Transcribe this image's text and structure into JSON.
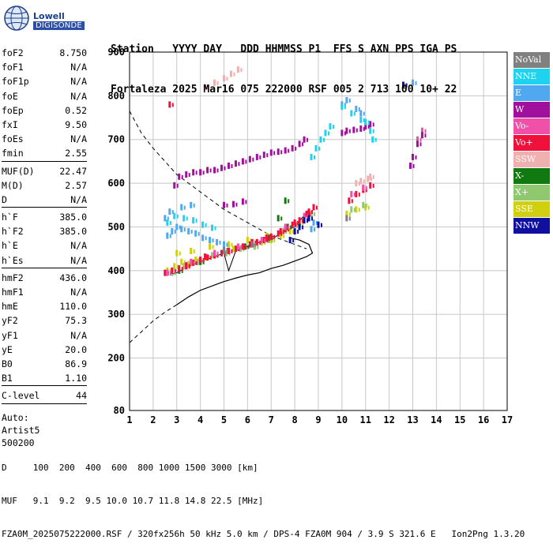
{
  "logo": {
    "brand": "Lowell",
    "product": "DIGISONDE"
  },
  "header": {
    "labels": [
      "Station",
      "YYYY",
      "DAY",
      "DDD",
      "HHMMSS",
      "P1",
      "FFS",
      "S",
      "AXN",
      "PPS",
      "IGA",
      "PS"
    ],
    "values": [
      "Fortaleza",
      "2025",
      "Mar16",
      "075",
      "222000",
      "RSF",
      "005",
      "2",
      "713",
      "100",
      "10+",
      "22"
    ]
  },
  "params": [
    {
      "name": "foF2",
      "value": "8.750"
    },
    {
      "name": "foF1",
      "value": "N/A"
    },
    {
      "name": "foF1p",
      "value": "N/A"
    },
    {
      "name": "foE",
      "value": "N/A"
    },
    {
      "name": "foEp",
      "value": "0.52"
    },
    {
      "name": "fxI",
      "value": "9.50"
    },
    {
      "name": "foEs",
      "value": "N/A"
    },
    {
      "name": "fmin",
      "value": "2.55",
      "sep": true
    },
    {
      "name": "MUF(D)",
      "value": "22.47"
    },
    {
      "name": "M(D)",
      "value": "2.57"
    },
    {
      "name": "D",
      "value": "N/A",
      "sep": true
    },
    {
      "name": "h`F",
      "value": "385.0"
    },
    {
      "name": "h`F2",
      "value": "385.0"
    },
    {
      "name": "h`E",
      "value": "N/A"
    },
    {
      "name": "h`Es",
      "value": "N/A",
      "sep": true
    },
    {
      "name": "hmF2",
      "value": "436.0"
    },
    {
      "name": "hmF1",
      "value": "N/A"
    },
    {
      "name": "hmE",
      "value": "110.0"
    },
    {
      "name": "yF2",
      "value": "75.3"
    },
    {
      "name": "yF1",
      "value": "N/A"
    },
    {
      "name": "yE",
      "value": "20.0"
    },
    {
      "name": "B0",
      "value": "86.9"
    },
    {
      "name": "B1",
      "value": "1.10",
      "sep": true
    },
    {
      "name": "C-level",
      "value": "44",
      "sep": true
    }
  ],
  "auto": [
    "Auto:",
    "Artist5",
    "500200"
  ],
  "legend": [
    {
      "label": "NoVal",
      "color": "#808080",
      "text": "#ffffff"
    },
    {
      "label": "NNE",
      "color": "#1ed2f0",
      "text": "#ffffff"
    },
    {
      "label": "E",
      "color": "#50a8f0",
      "text": "#ffffff"
    },
    {
      "label": "W",
      "color": "#a0109c",
      "text": "#ffffff"
    },
    {
      "label": "Vo-",
      "color": "#f050a8",
      "text": "#ffffff"
    },
    {
      "label": "Vo+",
      "color": "#f0103c",
      "text": "#ffffff"
    },
    {
      "label": "SSW",
      "color": "#f0b0b0",
      "text": "#ffffff"
    },
    {
      "label": "X-",
      "color": "#107a10",
      "text": "#ffffff"
    },
    {
      "label": "X+",
      "color": "#90c870",
      "text": "#ffffff"
    },
    {
      "label": "SSE",
      "color": "#d0d010",
      "text": "#ffffff"
    },
    {
      "label": "NNW",
      "color": "#1010a0",
      "text": "#ffffff"
    }
  ],
  "chart_data": {
    "type": "scatter",
    "xlim": [
      1,
      17
    ],
    "ylim": [
      80,
      900
    ],
    "xticks": [
      1,
      2,
      3,
      4,
      5,
      6,
      7,
      8,
      9,
      10,
      11,
      12,
      13,
      14,
      15,
      16,
      17
    ],
    "yticks": [
      80,
      200,
      300,
      400,
      500,
      600,
      700,
      800,
      900
    ],
    "grid": true,
    "legend_placement": "right",
    "series": [
      {
        "color": "#d0d010",
        "points": [
          [
            2.6,
            400
          ],
          [
            2.9,
            410
          ],
          [
            3.2,
            420
          ],
          [
            3.5,
            415
          ],
          [
            3.8,
            425
          ],
          [
            4.2,
            430
          ],
          [
            4.6,
            440
          ],
          [
            5.0,
            445
          ],
          [
            5.4,
            450
          ],
          [
            5.8,
            455
          ],
          [
            6.2,
            460
          ],
          [
            6.6,
            465
          ],
          [
            7.0,
            470
          ],
          [
            7.4,
            480
          ],
          [
            7.8,
            490
          ],
          [
            8.2,
            510
          ],
          [
            8.6,
            525
          ],
          [
            10.2,
            530
          ],
          [
            10.6,
            540
          ],
          [
            11.0,
            545
          ],
          [
            3.0,
            440
          ],
          [
            3.6,
            445
          ],
          [
            4.4,
            455
          ],
          [
            5.2,
            460
          ],
          [
            6.0,
            470
          ],
          [
            6.8,
            480
          ]
        ]
      },
      {
        "color": "#90c870",
        "points": [
          [
            2.8,
            395
          ],
          [
            3.3,
            410
          ],
          [
            3.9,
            420
          ],
          [
            4.5,
            435
          ],
          [
            5.1,
            440
          ],
          [
            5.7,
            450
          ],
          [
            6.3,
            455
          ],
          [
            6.9,
            470
          ],
          [
            7.5,
            490
          ],
          [
            8.1,
            505
          ],
          [
            8.7,
            530
          ],
          [
            10.4,
            540
          ],
          [
            10.9,
            550
          ]
        ]
      },
      {
        "color": "#107a10",
        "points": [
          [
            3.1,
            400
          ],
          [
            4.0,
            420
          ],
          [
            4.9,
            440
          ],
          [
            5.9,
            455
          ],
          [
            6.9,
            475
          ],
          [
            7.7,
            500
          ],
          [
            8.4,
            520
          ],
          [
            7.3,
            520
          ],
          [
            7.6,
            560
          ]
        ]
      },
      {
        "color": "#f0103c",
        "points": [
          [
            2.5,
            395
          ],
          [
            2.8,
            400
          ],
          [
            3.1,
            405
          ],
          [
            3.4,
            410
          ],
          [
            3.7,
            418
          ],
          [
            4.0,
            425
          ],
          [
            4.3,
            430
          ],
          [
            4.6,
            435
          ],
          [
            4.9,
            440
          ],
          [
            5.2,
            445
          ],
          [
            5.5,
            450
          ],
          [
            5.8,
            455
          ],
          [
            6.1,
            460
          ],
          [
            6.4,
            465
          ],
          [
            6.7,
            470
          ],
          [
            7.0,
            478
          ],
          [
            7.3,
            485
          ],
          [
            7.6,
            495
          ],
          [
            7.9,
            505
          ],
          [
            8.2,
            515
          ],
          [
            8.5,
            530
          ],
          [
            8.8,
            545
          ],
          [
            2.7,
            780
          ],
          [
            10.3,
            560
          ],
          [
            10.6,
            575
          ],
          [
            10.9,
            585
          ],
          [
            11.2,
            595
          ],
          [
            6.2,
            465
          ],
          [
            6.8,
            475
          ],
          [
            7.4,
            490
          ],
          [
            8.0,
            510
          ],
          [
            8.6,
            535
          ],
          [
            5.0,
            448
          ],
          [
            4.2,
            432
          ],
          [
            3.4,
            412
          ]
        ]
      },
      {
        "color": "#f050a8",
        "points": [
          [
            2.6,
            395
          ],
          [
            3.6,
            420
          ],
          [
            4.6,
            440
          ],
          [
            5.6,
            455
          ],
          [
            6.6,
            470
          ],
          [
            7.6,
            500
          ],
          [
            8.4,
            525
          ],
          [
            10.4,
            575
          ],
          [
            10.9,
            590
          ],
          [
            13.2,
            700
          ],
          [
            13.4,
            720
          ]
        ]
      },
      {
        "color": "#a0109c",
        "points": [
          [
            2.9,
            595
          ],
          [
            3.1,
            615
          ],
          [
            3.4,
            620
          ],
          [
            3.7,
            625
          ],
          [
            4.0,
            625
          ],
          [
            4.3,
            630
          ],
          [
            4.6,
            630
          ],
          [
            4.9,
            635
          ],
          [
            5.2,
            640
          ],
          [
            5.5,
            645
          ],
          [
            5.8,
            650
          ],
          [
            6.1,
            655
          ],
          [
            6.4,
            660
          ],
          [
            6.7,
            665
          ],
          [
            7.0,
            670
          ],
          [
            7.3,
            672
          ],
          [
            7.6,
            675
          ],
          [
            7.9,
            680
          ],
          [
            8.2,
            690
          ],
          [
            8.4,
            700
          ],
          [
            5.0,
            550
          ],
          [
            5.4,
            552
          ],
          [
            5.8,
            558
          ],
          [
            10.0,
            715
          ],
          [
            10.2,
            720
          ],
          [
            10.5,
            722
          ],
          [
            10.8,
            725
          ],
          [
            11.0,
            730
          ],
          [
            11.2,
            735
          ],
          [
            13.0,
            660
          ],
          [
            13.2,
            690
          ],
          [
            13.4,
            710
          ],
          [
            12.9,
            640
          ],
          [
            12.6,
            825
          ]
        ]
      },
      {
        "color": "#f0b0b0",
        "points": [
          [
            4.2,
            820
          ],
          [
            4.6,
            830
          ],
          [
            5.0,
            840
          ],
          [
            5.3,
            850
          ],
          [
            5.6,
            860
          ],
          [
            10.6,
            600
          ],
          [
            10.8,
            605
          ],
          [
            11.1,
            610
          ],
          [
            11.2,
            615
          ]
        ]
      },
      {
        "color": "#50a8f0",
        "points": [
          [
            2.6,
            480
          ],
          [
            2.8,
            490
          ],
          [
            3.0,
            500
          ],
          [
            3.2,
            495
          ],
          [
            3.5,
            490
          ],
          [
            3.8,
            485
          ],
          [
            4.1,
            475
          ],
          [
            4.4,
            470
          ],
          [
            4.7,
            465
          ],
          [
            5.0,
            460
          ],
          [
            2.5,
            520
          ],
          [
            2.7,
            535
          ],
          [
            3.2,
            545
          ],
          [
            3.6,
            550
          ],
          [
            10.0,
            780
          ],
          [
            10.2,
            790
          ],
          [
            10.6,
            770
          ],
          [
            10.8,
            760
          ],
          [
            13.0,
            830
          ],
          [
            8.7,
            495
          ],
          [
            8.8,
            510
          ]
        ]
      },
      {
        "color": "#1ed2f0",
        "points": [
          [
            2.9,
            525
          ],
          [
            3.3,
            520
          ],
          [
            3.7,
            515
          ],
          [
            4.1,
            505
          ],
          [
            4.5,
            498
          ],
          [
            8.7,
            660
          ],
          [
            8.9,
            680
          ],
          [
            9.1,
            700
          ],
          [
            9.3,
            715
          ],
          [
            9.5,
            730
          ],
          [
            10.0,
            775
          ],
          [
            10.4,
            760
          ],
          [
            10.8,
            745
          ],
          [
            11.0,
            740
          ],
          [
            11.2,
            720
          ],
          [
            11.3,
            700
          ],
          [
            2.6,
            510
          ]
        ]
      },
      {
        "color": "#1010a0",
        "points": [
          [
            7.8,
            470
          ],
          [
            8.0,
            490
          ],
          [
            8.2,
            500
          ],
          [
            8.4,
            515
          ],
          [
            8.6,
            520
          ],
          [
            9.0,
            505
          ],
          [
            12.6,
            825
          ]
        ]
      },
      {
        "color": "#808080",
        "points": [
          [
            5.0,
            445
          ],
          [
            6.2,
            460
          ],
          [
            10.2,
            520
          ]
        ]
      }
    ]
  },
  "footer": {
    "row_d_label": "D",
    "row_d_values": [
      "100",
      "200",
      "400",
      "600",
      "800",
      "1000",
      "1500",
      "3000",
      "[km]"
    ],
    "row_muf_label": "MUF",
    "row_muf_values": [
      "9.1",
      "9.2",
      "9.5",
      "10.0",
      "10.7",
      "11.8",
      "14.8",
      "22.5",
      "[MHz]"
    ],
    "line3": "FZA0M_2025075222000.RSF / 320fx256h 50 kHz 5.0 km / DPS-4 FZA0M 904 / 3.9 S 321.6 E   Ion2Png 1.3.20"
  }
}
